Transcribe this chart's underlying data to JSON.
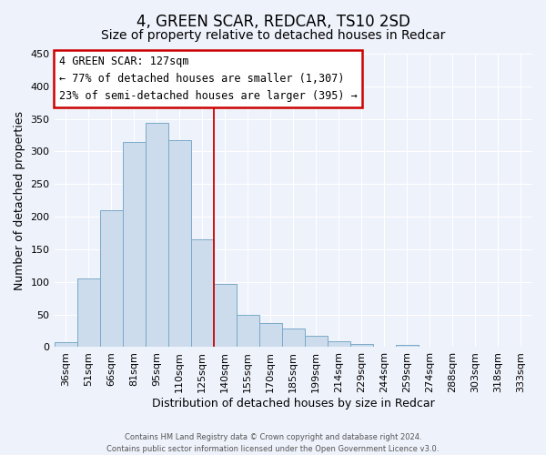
{
  "title": "4, GREEN SCAR, REDCAR, TS10 2SD",
  "subtitle": "Size of property relative to detached houses in Redcar",
  "xlabel": "Distribution of detached houses by size in Redcar",
  "ylabel": "Number of detached properties",
  "bar_labels": [
    "36sqm",
    "51sqm",
    "66sqm",
    "81sqm",
    "95sqm",
    "110sqm",
    "125sqm",
    "140sqm",
    "155sqm",
    "170sqm",
    "185sqm",
    "199sqm",
    "214sqm",
    "229sqm",
    "244sqm",
    "259sqm",
    "274sqm",
    "288sqm",
    "303sqm",
    "318sqm",
    "333sqm"
  ],
  "bar_values": [
    7,
    105,
    210,
    315,
    344,
    318,
    165,
    97,
    50,
    37,
    29,
    18,
    9,
    5,
    0,
    3,
    0,
    0,
    0,
    0,
    0
  ],
  "bar_color": "#ccdcec",
  "bar_edge_color": "#7aaac8",
  "property_line_color": "#cc0000",
  "annotation_title": "4 GREEN SCAR: 127sqm",
  "annotation_line1": "← 77% of detached houses are smaller (1,307)",
  "annotation_line2": "23% of semi-detached houses are larger (395) →",
  "annotation_box_color": "#cc0000",
  "ylim": [
    0,
    450
  ],
  "yticks": [
    0,
    50,
    100,
    150,
    200,
    250,
    300,
    350,
    400,
    450
  ],
  "footer_line1": "Contains HM Land Registry data © Crown copyright and database right 2024.",
  "footer_line2": "Contains public sector information licensed under the Open Government Licence v3.0.",
  "bg_color": "#eef2fb",
  "grid_color": "#ffffff",
  "title_fontsize": 12,
  "subtitle_fontsize": 10,
  "axis_label_fontsize": 9,
  "tick_fontsize": 8,
  "footer_fontsize": 6,
  "annotation_fontsize": 8.5
}
